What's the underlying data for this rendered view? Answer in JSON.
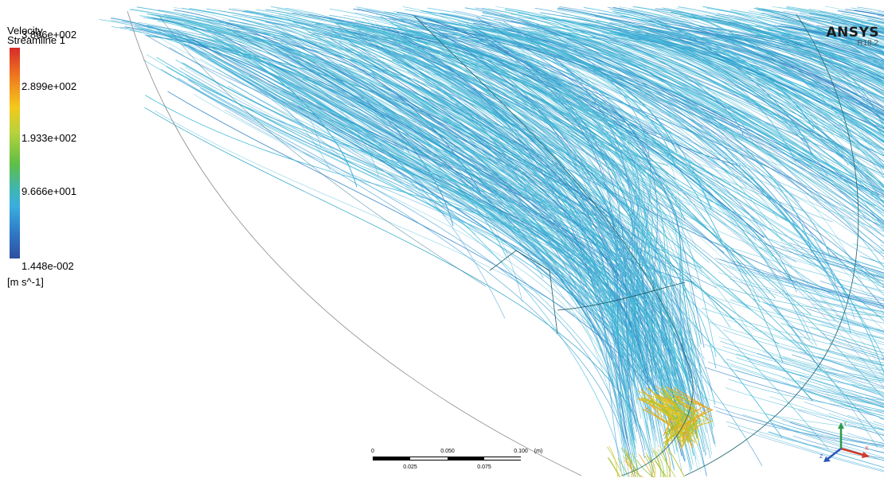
{
  "legend": {
    "variable": "Velocity",
    "object": "Streamline 1",
    "labels": [
      "3.866e+002",
      "2.899e+002",
      "1.933e+002",
      "9.666e+001",
      "1.448e-002"
    ],
    "units": "[m s^-1]"
  },
  "brand": {
    "name": "ANSYS",
    "version": "R18.2"
  },
  "scale_bar": {
    "top_labels": [
      "0",
      "0.050",
      "0.100"
    ],
    "bottom_labels": [
      "0.025",
      "0.075"
    ],
    "unit": "(m)"
  },
  "triad": {
    "x_label": "X",
    "y_label": "Y",
    "z_label": "Z"
  },
  "colors": {
    "streamline_primary": "#3fb7d8",
    "streamline_secondary": "#4aa3d6",
    "streamline_dark": "#2b7fc4",
    "hot_region": "#e0c21c",
    "boundary": "#7a7a7a"
  }
}
